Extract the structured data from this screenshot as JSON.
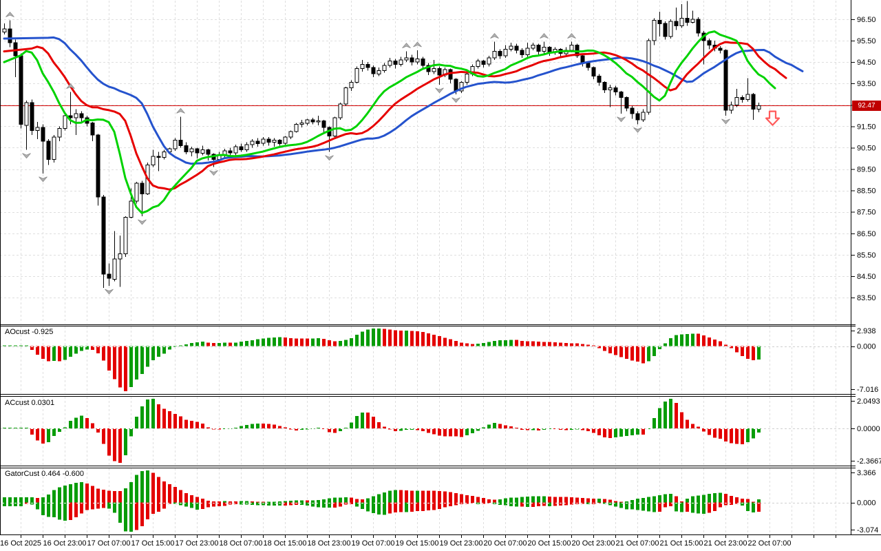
{
  "chart_data": {
    "type": "candlestick",
    "timeframe": "H1",
    "x_labels": [
      "16 Oct 2025",
      "16 Oct 23:00",
      "17 Oct 07:00",
      "17 Oct 15:00",
      "17 Oct 23:00",
      "18 Oct 07:00",
      "18 Oct 15:00",
      "18 Oct 23:00",
      "19 Oct 07:00",
      "19 Oct 15:00",
      "19 Oct 23:00",
      "20 Oct 07:00",
      "20 Oct 15:00",
      "20 Oct 23:00",
      "21 Oct 07:00",
      "21 Oct 15:00",
      "21 Oct 23:00",
      "22 Oct 07:00"
    ],
    "price_axis": {
      "tick_labels": [
        "96.50",
        "95.50",
        "94.50",
        "93.50",
        "92.50",
        "91.50",
        "90.50",
        "89.50",
        "88.50",
        "87.50",
        "86.50",
        "85.50",
        "84.50",
        "83.50"
      ],
      "tick_top_price": 96.5,
      "tick_step": 1.0,
      "current_price": 92.47,
      "current_price_label": "92.47"
    },
    "candles": [
      [
        95.9,
        96.3,
        95.8,
        96.05
      ],
      [
        96.05,
        96.45,
        95.2,
        95.4
      ],
      [
        95.4,
        95.55,
        93.8,
        94.8
      ],
      [
        94.8,
        94.9,
        91.4,
        91.6
      ],
      [
        91.55,
        92.7,
        90.4,
        92.6
      ],
      [
        92.6,
        92.75,
        91.1,
        91.3
      ],
      [
        91.3,
        91.7,
        90.9,
        91.45
      ],
      [
        91.45,
        91.6,
        89.3,
        90.8
      ],
      [
        90.8,
        90.9,
        89.7,
        89.95
      ],
      [
        89.95,
        91.1,
        89.8,
        91.0
      ],
      [
        91.0,
        91.5,
        90.8,
        91.4
      ],
      [
        91.4,
        92.1,
        91.3,
        92.0
      ],
      [
        92.0,
        93.1,
        91.6,
        91.9
      ],
      [
        91.9,
        92.3,
        91.1,
        92.1
      ],
      [
        92.1,
        92.2,
        91.7,
        91.9
      ],
      [
        91.9,
        92.0,
        91.5,
        91.65
      ],
      [
        91.65,
        91.7,
        90.8,
        91.1
      ],
      [
        91.1,
        91.15,
        87.8,
        88.2
      ],
      [
        88.2,
        88.3,
        83.95,
        84.6
      ],
      [
        84.6,
        85.1,
        84.05,
        84.4
      ],
      [
        84.35,
        86.6,
        84.25,
        85.3
      ],
      [
        85.3,
        86.4,
        84.0,
        85.55
      ],
      [
        85.55,
        87.3,
        85.4,
        87.25
      ],
      [
        87.25,
        88.6,
        87.2,
        88.0
      ],
      [
        88.0,
        88.9,
        87.9,
        88.85
      ],
      [
        88.85,
        88.95,
        87.3,
        88.35
      ],
      [
        88.35,
        89.8,
        88.3,
        89.7
      ],
      [
        89.7,
        90.4,
        89.6,
        90.1
      ],
      [
        90.1,
        90.3,
        89.4,
        90.05
      ],
      [
        90.05,
        90.4,
        89.95,
        90.3
      ],
      [
        90.3,
        90.5,
        90.2,
        90.45
      ],
      [
        90.45,
        90.95,
        90.35,
        90.85
      ],
      [
        90.85,
        91.95,
        90.5,
        90.6
      ],
      [
        90.6,
        90.75,
        90.2,
        90.3
      ],
      [
        90.3,
        90.55,
        90.1,
        90.45
      ],
      [
        90.45,
        90.5,
        90.0,
        90.25
      ],
      [
        90.25,
        90.6,
        90.15,
        90.4
      ],
      [
        90.4,
        90.45,
        89.9,
        90.2
      ],
      [
        90.2,
        90.25,
        89.6,
        89.95
      ],
      [
        89.95,
        90.3,
        89.85,
        90.15
      ],
      [
        90.15,
        90.45,
        90.0,
        90.35
      ],
      [
        90.35,
        90.5,
        90.1,
        90.25
      ],
      [
        90.25,
        90.65,
        90.15,
        90.55
      ],
      [
        90.55,
        90.7,
        90.3,
        90.4
      ],
      [
        90.4,
        90.75,
        90.3,
        90.65
      ],
      [
        90.65,
        90.9,
        90.5,
        90.8
      ],
      [
        90.8,
        90.95,
        90.55,
        90.7
      ],
      [
        90.7,
        91.0,
        90.6,
        90.9
      ],
      [
        90.9,
        91.0,
        90.6,
        90.75
      ],
      [
        90.75,
        90.95,
        90.55,
        90.85
      ],
      [
        90.85,
        90.9,
        90.6,
        90.7
      ],
      [
        90.7,
        91.05,
        90.65,
        91.0
      ],
      [
        91.0,
        91.3,
        90.9,
        91.25
      ],
      [
        91.25,
        91.65,
        91.2,
        91.6
      ],
      [
        91.6,
        91.8,
        91.45,
        91.65
      ],
      [
        91.65,
        91.85,
        91.55,
        91.8
      ],
      [
        91.8,
        91.9,
        91.6,
        91.7
      ],
      [
        91.7,
        92.0,
        91.55,
        91.75
      ],
      [
        91.75,
        91.8,
        91.2,
        91.45
      ],
      [
        91.45,
        91.5,
        90.3,
        91.05
      ],
      [
        91.05,
        91.95,
        90.95,
        91.9
      ],
      [
        91.9,
        92.6,
        91.8,
        92.55
      ],
      [
        92.55,
        93.35,
        92.45,
        93.3
      ],
      [
        93.3,
        93.65,
        93.15,
        93.55
      ],
      [
        93.55,
        94.3,
        93.5,
        94.2
      ],
      [
        94.2,
        94.6,
        94.05,
        94.4
      ],
      [
        94.4,
        94.5,
        94.1,
        94.25
      ],
      [
        94.25,
        94.35,
        93.8,
        93.95
      ],
      [
        93.95,
        94.25,
        93.85,
        94.1
      ],
      [
        94.1,
        94.45,
        94.0,
        94.35
      ],
      [
        94.35,
        94.7,
        94.25,
        94.55
      ],
      [
        94.55,
        94.65,
        94.2,
        94.4
      ],
      [
        94.4,
        94.75,
        94.3,
        94.6
      ],
      [
        94.6,
        95.0,
        94.5,
        94.7
      ],
      [
        94.7,
        94.85,
        94.35,
        94.5
      ],
      [
        94.5,
        95.05,
        94.4,
        94.65
      ],
      [
        94.65,
        94.75,
        94.2,
        94.35
      ],
      [
        94.35,
        94.45,
        93.9,
        94.05
      ],
      [
        94.05,
        94.6,
        93.95,
        94.2
      ],
      [
        94.2,
        94.3,
        93.45,
        93.9
      ],
      [
        93.9,
        94.25,
        93.8,
        94.15
      ],
      [
        94.15,
        94.2,
        93.5,
        93.7
      ],
      [
        93.7,
        93.75,
        93.0,
        93.15
      ],
      [
        93.15,
        93.6,
        93.05,
        93.55
      ],
      [
        93.55,
        94.0,
        93.45,
        93.95
      ],
      [
        93.95,
        94.4,
        93.85,
        94.3
      ],
      [
        94.3,
        94.65,
        94.2,
        94.55
      ],
      [
        94.55,
        94.6,
        94.25,
        94.4
      ],
      [
        94.4,
        94.8,
        94.3,
        94.7
      ],
      [
        94.7,
        95.45,
        94.6,
        95.0
      ],
      [
        95.0,
        95.1,
        94.65,
        94.8
      ],
      [
        94.8,
        95.3,
        94.7,
        95.1
      ],
      [
        95.1,
        95.4,
        95.0,
        95.25
      ],
      [
        95.25,
        95.35,
        94.9,
        95.05
      ],
      [
        95.05,
        95.15,
        94.7,
        94.85
      ],
      [
        94.85,
        95.4,
        94.75,
        95.15
      ],
      [
        95.15,
        95.4,
        95.05,
        95.3
      ],
      [
        95.3,
        95.35,
        94.85,
        95.0
      ],
      [
        95.0,
        95.45,
        94.9,
        95.2
      ],
      [
        95.2,
        95.25,
        94.8,
        94.95
      ],
      [
        94.95,
        95.2,
        94.85,
        95.1
      ],
      [
        95.1,
        95.15,
        94.75,
        94.9
      ],
      [
        94.9,
        95.2,
        94.8,
        95.05
      ],
      [
        95.05,
        95.45,
        94.95,
        95.3
      ],
      [
        95.3,
        95.35,
        94.7,
        94.8
      ],
      [
        94.8,
        94.9,
        94.3,
        94.45
      ],
      [
        94.45,
        94.55,
        94.1,
        94.25
      ],
      [
        94.25,
        94.3,
        93.7,
        93.85
      ],
      [
        93.85,
        93.95,
        93.4,
        93.55
      ],
      [
        93.55,
        93.6,
        93.05,
        93.2
      ],
      [
        93.2,
        93.45,
        92.4,
        93.3
      ],
      [
        93.3,
        93.4,
        92.95,
        93.1
      ],
      [
        93.1,
        93.15,
        92.1,
        92.85
      ],
      [
        92.85,
        92.9,
        92.2,
        92.35
      ],
      [
        92.35,
        92.45,
        91.85,
        92.1
      ],
      [
        92.1,
        92.2,
        91.6,
        91.8
      ],
      [
        91.8,
        92.3,
        91.7,
        92.15
      ],
      [
        92.15,
        95.6,
        92.05,
        95.5
      ],
      [
        95.5,
        96.55,
        95.3,
        96.45
      ],
      [
        96.45,
        96.85,
        95.7,
        96.3
      ],
      [
        96.3,
        96.4,
        95.55,
        95.7
      ],
      [
        95.7,
        96.5,
        95.6,
        96.4
      ],
      [
        96.4,
        97.05,
        96.0,
        96.2
      ],
      [
        96.2,
        97.2,
        96.1,
        96.55
      ],
      [
        96.55,
        97.35,
        96.2,
        96.35
      ],
      [
        96.35,
        96.9,
        96.3,
        96.5
      ],
      [
        96.5,
        96.6,
        95.7,
        95.85
      ],
      [
        95.85,
        95.95,
        94.4,
        95.5
      ],
      [
        95.5,
        95.6,
        95.1,
        95.3
      ],
      [
        95.3,
        95.5,
        95.0,
        95.15
      ],
      [
        95.15,
        95.25,
        94.9,
        95.05
      ],
      [
        95.05,
        95.1,
        92.0,
        92.25
      ],
      [
        92.25,
        92.65,
        92.1,
        92.5
      ],
      [
        92.5,
        93.25,
        92.4,
        92.85
      ],
      [
        92.85,
        92.95,
        92.6,
        92.75
      ],
      [
        92.75,
        93.75,
        92.65,
        93.0
      ],
      [
        93.0,
        93.05,
        91.8,
        92.3
      ],
      [
        92.3,
        92.6,
        92.15,
        92.47
      ]
    ],
    "fractals_up": [
      1,
      12,
      32,
      73,
      75,
      89,
      98,
      103,
      124
    ],
    "fractals_down": [
      4,
      7,
      19,
      25,
      38,
      59,
      79,
      82,
      112,
      115,
      131
    ],
    "alligator": {
      "jaw": {
        "period": 13,
        "shift": 8,
        "start": 95.6,
        "color": "#2553cd"
      },
      "teeth": {
        "period": 8,
        "shift": 5,
        "start": 95.0,
        "color": "#e60000"
      },
      "lips": {
        "period": 5,
        "shift": 3,
        "start": 94.5,
        "color": "#00d200"
      }
    },
    "signal_arrow": {
      "direction": "down",
      "price": 92.2,
      "color": "#ff5a5a"
    },
    "panels": {
      "ao": {
        "label": "AOcust -0.925",
        "value": -0.925,
        "max": 2.938,
        "min": -7.016,
        "max_label": "2.938",
        "zero_label": "0.000",
        "min_label": "-7.016"
      },
      "ac": {
        "label": "ACcust 0.0301",
        "value": 0.0301,
        "max": 2.0493,
        "min": -2.3667,
        "max_label": "2.0493",
        "zero_label": "0.0000",
        "min_label": "-2.3667"
      },
      "gator": {
        "label": "GatorCust 0.464 -0.600",
        "values": [
          0.464,
          -0.6
        ],
        "max": 3.366,
        "min": -3.074,
        "max_label": "3.366",
        "zero_label": "0.000",
        "min_label": "-3.074"
      }
    },
    "colors": {
      "hist_up": "#089c08",
      "hist_down": "#e30000",
      "grid": "#dedede",
      "zero_line": "#cfcfcf",
      "candle_up": "#ffffff",
      "candle_down": "#000000",
      "candle_outline": "#000000",
      "price_line": "#d40000",
      "badge_bg": "#c00000",
      "fractal": "#b0b0b0",
      "border": "#000000"
    }
  }
}
